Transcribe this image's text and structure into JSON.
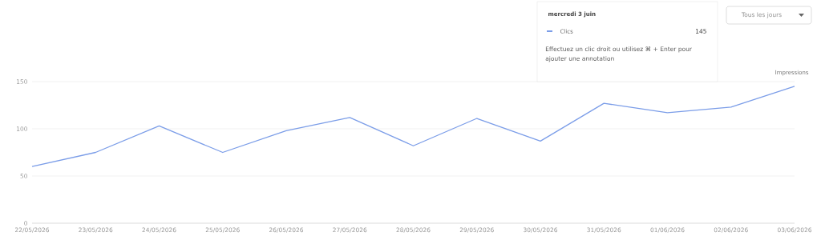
{
  "chart_data": {
    "type": "line",
    "categories": [
      "22/05/2026",
      "23/05/2026",
      "24/05/2026",
      "25/05/2026",
      "26/05/2026",
      "27/05/2026",
      "28/05/2026",
      "29/05/2026",
      "30/05/2026",
      "31/05/2026",
      "01/06/2026",
      "02/06/2026",
      "03/06/2026"
    ],
    "series": [
      {
        "name": "Clics",
        "color": "#7b9de8",
        "values": [
          60,
          75,
          103,
          75,
          98,
          112,
          82,
          111,
          87,
          127,
          117,
          123,
          145
        ]
      }
    ],
    "ylim": [
      0,
      150
    ],
    "yticks": [
      0,
      50,
      100,
      150
    ],
    "grid": "y",
    "legend": "top right",
    "marker": "none",
    "line_style": "solid",
    "annotations": [
      "mercredi 3 juin",
      "145",
      "Effectuez un clic droit ou utilisez ⌘ + Enter pour ajouter une annotation",
      "Tous les jours",
      "Impressions"
    ]
  }
}
